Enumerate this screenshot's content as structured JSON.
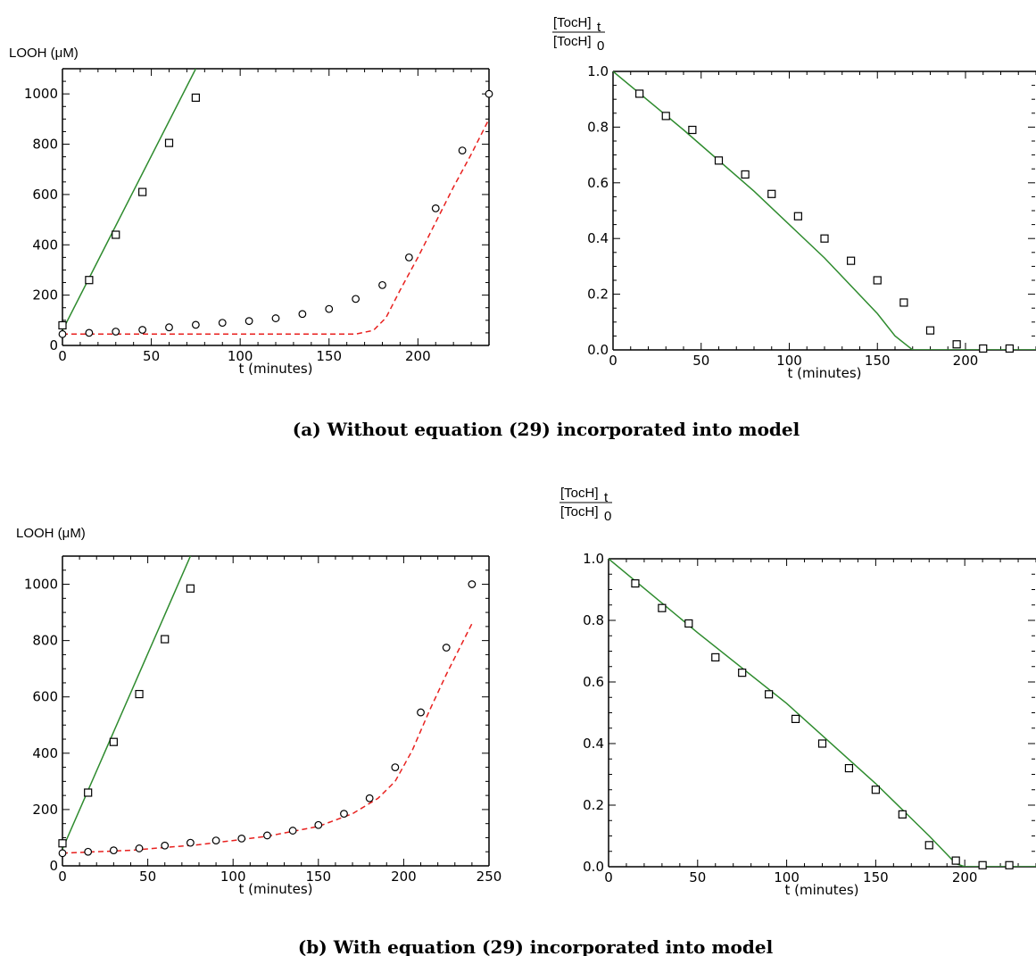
{
  "captions": {
    "a": "(a) Without equation (29) incorporated into model",
    "b": "(b) With equation (29) incorporated into model"
  },
  "colors": {
    "model_green": "#2e8b2e",
    "model_red": "#e8201e",
    "marker": "#000000"
  },
  "chart_data": [
    {
      "id": "a-left",
      "type": "scatter",
      "ylabel": "LOOH (μM)",
      "xlabel": "t (minutes)",
      "xlim": [
        0,
        240
      ],
      "ylim": [
        0,
        1100
      ],
      "xticks": [
        0,
        50,
        100,
        150,
        200
      ],
      "yticks": [
        0,
        200,
        400,
        600,
        800,
        1000
      ],
      "series": [
        {
          "kind": "markers",
          "marker": "square",
          "points": [
            [
              0,
              80
            ],
            [
              15,
              260
            ],
            [
              30,
              440
            ],
            [
              45,
              610
            ],
            [
              60,
              805
            ],
            [
              75,
              985
            ]
          ]
        },
        {
          "kind": "markers",
          "marker": "circle",
          "points": [
            [
              0,
              45
            ],
            [
              15,
              50
            ],
            [
              30,
              55
            ],
            [
              45,
              62
            ],
            [
              60,
              72
            ],
            [
              75,
              82
            ],
            [
              90,
              90
            ],
            [
              105,
              97
            ],
            [
              120,
              108
            ],
            [
              135,
              125
            ],
            [
              150,
              145
            ],
            [
              165,
              185
            ],
            [
              180,
              240
            ],
            [
              195,
              350
            ],
            [
              210,
              545
            ],
            [
              225,
              775
            ],
            [
              240,
              1000
            ]
          ]
        },
        {
          "kind": "line",
          "color": "model_green",
          "style": "solid",
          "points": [
            [
              0,
              60
            ],
            [
              75,
              1100
            ]
          ]
        },
        {
          "kind": "line",
          "color": "model_red",
          "style": "dashed",
          "points": [
            [
              0,
              45
            ],
            [
              165,
              45
            ],
            [
              175,
              60
            ],
            [
              182,
              110
            ],
            [
              190,
              220
            ],
            [
              200,
              350
            ],
            [
              210,
              490
            ],
            [
              220,
              630
            ],
            [
              230,
              760
            ],
            [
              240,
              900
            ]
          ]
        }
      ]
    },
    {
      "id": "a-right",
      "type": "scatter",
      "ylabel_num": "[TocH]",
      "ylabel_num_sub": "t",
      "ylabel_den": "[TocH]",
      "ylabel_den_sub": "0",
      "xlabel": "t (minutes)",
      "xlim": [
        0,
        240
      ],
      "ylim": [
        0,
        1.0
      ],
      "xticks": [
        0,
        50,
        100,
        150,
        200
      ],
      "yticks": [
        "0.0",
        "0.2",
        "0.4",
        "0.6",
        "0.8",
        "1.0"
      ],
      "series": [
        {
          "kind": "markers",
          "marker": "square",
          "points": [
            [
              15,
              0.92
            ],
            [
              30,
              0.84
            ],
            [
              45,
              0.79
            ],
            [
              60,
              0.68
            ],
            [
              75,
              0.63
            ],
            [
              90,
              0.56
            ],
            [
              105,
              0.48
            ],
            [
              120,
              0.4
            ],
            [
              135,
              0.32
            ],
            [
              150,
              0.25
            ],
            [
              165,
              0.17
            ],
            [
              180,
              0.07
            ],
            [
              195,
              0.02
            ],
            [
              210,
              0.005
            ],
            [
              225,
              0.005
            ]
          ]
        },
        {
          "kind": "line",
          "color": "model_green",
          "style": "solid",
          "points": [
            [
              0,
              1.0
            ],
            [
              40,
              0.79
            ],
            [
              80,
              0.57
            ],
            [
              120,
              0.33
            ],
            [
              150,
              0.13
            ],
            [
              160,
              0.05
            ],
            [
              170,
              0.0
            ],
            [
              240,
              0.0
            ]
          ]
        }
      ]
    },
    {
      "id": "b-left",
      "type": "scatter",
      "ylabel": "LOOH (μM)",
      "xlabel": "t (minutes)",
      "xlim": [
        0,
        250
      ],
      "ylim": [
        0,
        1100
      ],
      "xticks": [
        0,
        50,
        100,
        150,
        200,
        250
      ],
      "yticks": [
        0,
        200,
        400,
        600,
        800,
        1000
      ],
      "series": [
        {
          "kind": "markers",
          "marker": "square",
          "points": [
            [
              0,
              80
            ],
            [
              15,
              260
            ],
            [
              30,
              440
            ],
            [
              45,
              610
            ],
            [
              60,
              805
            ],
            [
              75,
              985
            ]
          ]
        },
        {
          "kind": "markers",
          "marker": "circle",
          "points": [
            [
              0,
              45
            ],
            [
              15,
              50
            ],
            [
              30,
              55
            ],
            [
              45,
              62
            ],
            [
              60,
              72
            ],
            [
              75,
              82
            ],
            [
              90,
              90
            ],
            [
              105,
              97
            ],
            [
              120,
              108
            ],
            [
              135,
              125
            ],
            [
              150,
              145
            ],
            [
              165,
              185
            ],
            [
              180,
              240
            ],
            [
              195,
              350
            ],
            [
              210,
              545
            ],
            [
              225,
              775
            ],
            [
              240,
              1000
            ]
          ]
        },
        {
          "kind": "line",
          "color": "model_green",
          "style": "solid",
          "points": [
            [
              0,
              60
            ],
            [
              75,
              1100
            ]
          ]
        },
        {
          "kind": "line",
          "color": "model_red",
          "style": "dashed",
          "points": [
            [
              0,
              45
            ],
            [
              40,
              55
            ],
            [
              80,
              75
            ],
            [
              120,
              105
            ],
            [
              150,
              140
            ],
            [
              170,
              185
            ],
            [
              185,
              240
            ],
            [
              195,
              300
            ],
            [
              205,
              410
            ],
            [
              215,
              550
            ],
            [
              225,
              680
            ],
            [
              235,
              800
            ],
            [
              240,
              860
            ]
          ]
        }
      ]
    },
    {
      "id": "b-right",
      "type": "scatter",
      "ylabel_num": "[TocH]",
      "ylabel_num_sub": "t",
      "ylabel_den": "[TocH]",
      "ylabel_den_sub": "0",
      "xlabel": "t (minutes)",
      "xlim": [
        0,
        240
      ],
      "ylim": [
        0,
        1.0
      ],
      "xticks": [
        0,
        50,
        100,
        150,
        200
      ],
      "yticks": [
        "0.0",
        "0.2",
        "0.4",
        "0.6",
        "0.8",
        "1.0"
      ],
      "series": [
        {
          "kind": "markers",
          "marker": "square",
          "points": [
            [
              15,
              0.92
            ],
            [
              30,
              0.84
            ],
            [
              45,
              0.79
            ],
            [
              60,
              0.68
            ],
            [
              75,
              0.63
            ],
            [
              90,
              0.56
            ],
            [
              105,
              0.48
            ],
            [
              120,
              0.4
            ],
            [
              135,
              0.32
            ],
            [
              150,
              0.25
            ],
            [
              165,
              0.17
            ],
            [
              180,
              0.07
            ],
            [
              195,
              0.02
            ],
            [
              210,
              0.005
            ],
            [
              225,
              0.005
            ]
          ]
        },
        {
          "kind": "line",
          "color": "model_green",
          "style": "solid",
          "points": [
            [
              0,
              1.0
            ],
            [
              50,
              0.76
            ],
            [
              100,
              0.53
            ],
            [
              150,
              0.27
            ],
            [
              180,
              0.1
            ],
            [
              195,
              0.01
            ],
            [
              200,
              0.0
            ],
            [
              240,
              0.0
            ]
          ]
        }
      ]
    }
  ]
}
